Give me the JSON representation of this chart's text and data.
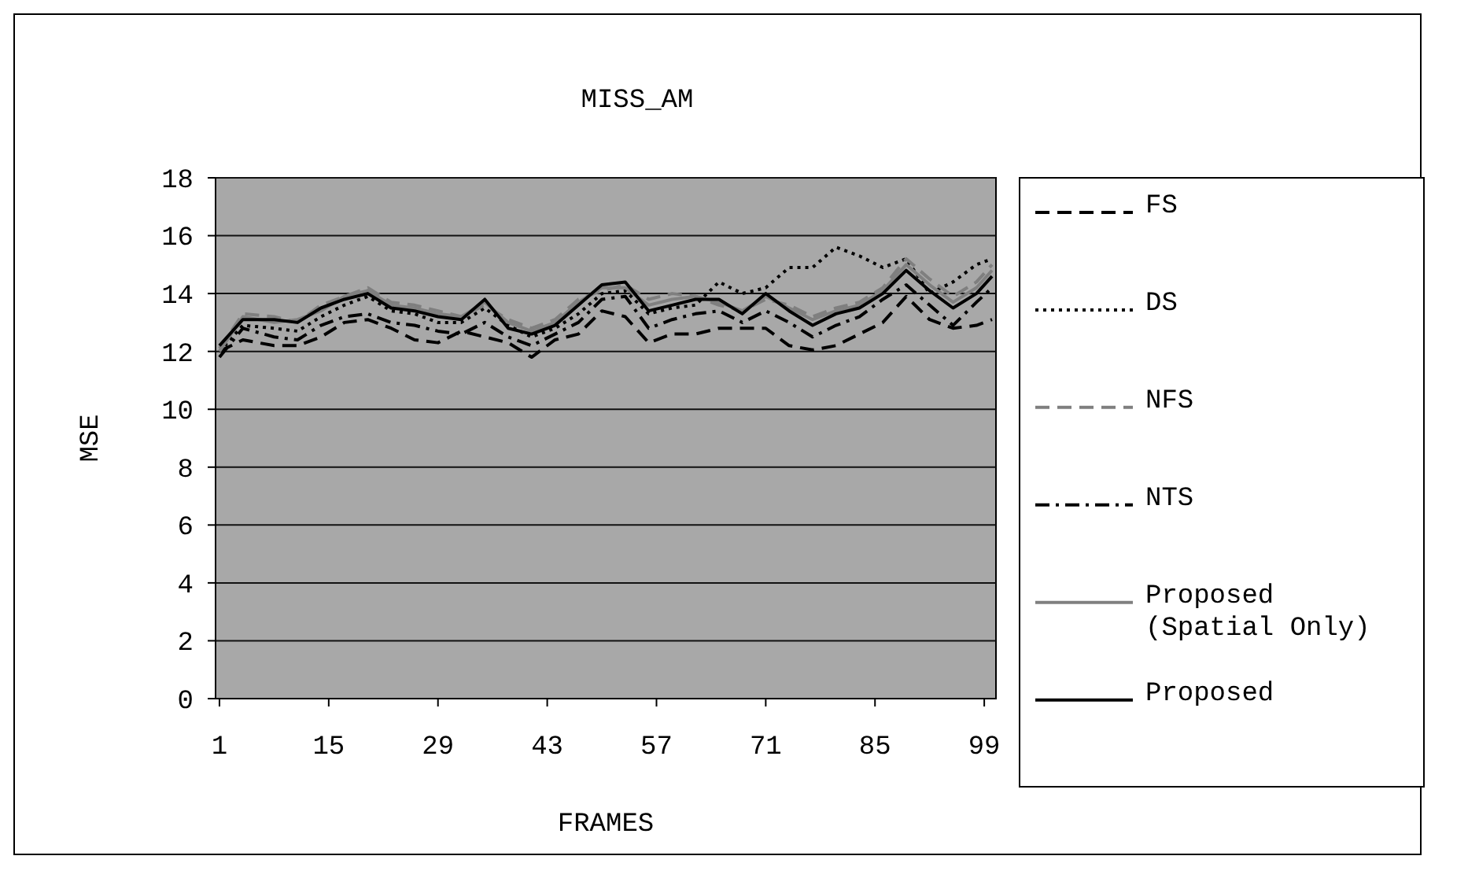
{
  "chart_data": {
    "type": "line",
    "title": "MISS_AM",
    "xlabel": "FRAMES",
    "ylabel": "MSE",
    "x": [
      1,
      4,
      8,
      11,
      14,
      17,
      20,
      23,
      26,
      29,
      32,
      35,
      38,
      41,
      44,
      47,
      50,
      53,
      56,
      59,
      62,
      65,
      68,
      71,
      74,
      77,
      80,
      83,
      86,
      89,
      92,
      95,
      98,
      100
    ],
    "xlim": [
      0.5,
      100.5
    ],
    "xticks": [
      1,
      15,
      29,
      43,
      57,
      71,
      85,
      99
    ],
    "ylim": [
      0,
      18
    ],
    "yticks": [
      0,
      2,
      4,
      6,
      8,
      10,
      12,
      14,
      16,
      18
    ],
    "grid": "y",
    "legend": "right",
    "marker": "none",
    "series": [
      {
        "name": "FS",
        "color": "#000000",
        "line_style": "dashed",
        "values": [
          12.0,
          12.4,
          12.2,
          12.2,
          12.5,
          13.0,
          13.1,
          12.8,
          12.4,
          12.3,
          12.7,
          12.5,
          12.3,
          11.8,
          12.4,
          12.6,
          13.4,
          13.2,
          12.3,
          12.6,
          12.6,
          12.8,
          12.8,
          12.8,
          12.2,
          12.05,
          12.2,
          12.6,
          13.0,
          13.9,
          13.1,
          12.8,
          12.9,
          13.1
        ]
      },
      {
        "name": "DS",
        "color": "#000000",
        "line_style": "dotted",
        "values": [
          12.0,
          12.9,
          12.8,
          12.7,
          13.2,
          13.6,
          13.9,
          13.4,
          13.3,
          13.0,
          13.0,
          13.5,
          12.9,
          12.5,
          12.8,
          13.3,
          14.0,
          14.1,
          13.3,
          13.5,
          13.6,
          14.4,
          14.0,
          14.2,
          14.9,
          14.9,
          15.6,
          15.3,
          14.9,
          15.2,
          14.0,
          14.4,
          15.0,
          15.2
        ]
      },
      {
        "name": "NFS",
        "color": "#7f7f7f",
        "line_style": "dashed",
        "values": [
          12.1,
          13.3,
          13.2,
          13.0,
          13.6,
          13.9,
          14.2,
          13.7,
          13.6,
          13.4,
          13.2,
          13.6,
          13.1,
          12.8,
          13.1,
          13.8,
          14.1,
          14.3,
          13.8,
          14.0,
          13.9,
          13.6,
          13.4,
          13.8,
          13.6,
          13.2,
          13.5,
          13.7,
          14.2,
          15.2,
          14.5,
          13.9,
          14.4,
          15.0
        ]
      },
      {
        "name": "NTS",
        "color": "#000000",
        "line_style": "dashdot",
        "values": [
          11.8,
          12.8,
          12.5,
          12.4,
          12.9,
          13.2,
          13.3,
          13.0,
          12.9,
          12.7,
          12.6,
          13.0,
          12.5,
          12.2,
          12.6,
          13.0,
          13.8,
          13.9,
          12.8,
          13.1,
          13.3,
          13.4,
          13.0,
          13.4,
          13.0,
          12.5,
          12.9,
          13.2,
          13.8,
          14.3,
          13.6,
          12.9,
          13.7,
          14.2
        ]
      },
      {
        "name": "Proposed (Spatial Only)",
        "color": "#808080",
        "line_style": "solid",
        "values": [
          12.0,
          13.2,
          13.0,
          13.1,
          13.4,
          13.9,
          14.1,
          13.6,
          13.5,
          13.3,
          13.2,
          13.7,
          13.0,
          12.7,
          13.0,
          13.7,
          14.2,
          14.2,
          13.6,
          13.8,
          13.9,
          13.7,
          13.4,
          13.9,
          13.5,
          13.1,
          13.4,
          13.6,
          14.1,
          15.0,
          14.3,
          13.7,
          14.2,
          14.8
        ]
      },
      {
        "name": "Proposed",
        "color": "#000000",
        "line_style": "solid",
        "values": [
          12.2,
          13.1,
          13.1,
          13.0,
          13.5,
          13.8,
          14.0,
          13.5,
          13.4,
          13.2,
          13.1,
          13.8,
          12.8,
          12.6,
          12.9,
          13.6,
          14.3,
          14.4,
          13.4,
          13.6,
          13.8,
          13.8,
          13.3,
          14.0,
          13.4,
          12.9,
          13.3,
          13.5,
          14.0,
          14.8,
          14.1,
          13.5,
          14.0,
          14.6
        ]
      }
    ]
  }
}
